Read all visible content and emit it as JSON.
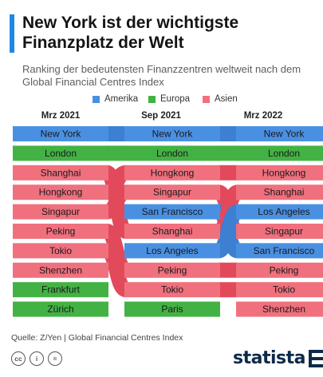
{
  "title": "New York ist der wichtigste Finanzplatz der Welt",
  "subtitle": "Ranking der bedeutensten Finanzzentren weltweit nach dem Global Financial Centres Index",
  "legend": [
    {
      "label": "Amerika",
      "color": "#4a90e2",
      "region": "Amerika"
    },
    {
      "label": "Europa",
      "color": "#43b244",
      "region": "Europa"
    },
    {
      "label": "Asien",
      "color": "#f0707e",
      "region": "Asien"
    }
  ],
  "source": "Quelle: Z/Yen | Global Financial Centres Index",
  "logo": "statista",
  "license_icons": [
    "cc-icon",
    "attribution-icon",
    "equals-icon"
  ],
  "chart_data": {
    "type": "table",
    "columns": [
      "Mrz 2021",
      "Sep 2021",
      "Mrz 2022"
    ],
    "regions": {
      "New York": "Amerika",
      "San Francisco": "Amerika",
      "Los Angeles": "Amerika",
      "London": "Europa",
      "Frankfurt": "Europa",
      "Zürich": "Europa",
      "Paris": "Europa",
      "Shanghai": "Asien",
      "Hongkong": "Asien",
      "Singapur": "Asien",
      "Peking": "Asien",
      "Tokio": "Asien",
      "Shenzhen": "Asien"
    },
    "region_colors": {
      "Amerika": {
        "fill": "#4a90e2",
        "link": "#3d7fd0"
      },
      "Europa": {
        "fill": "#43b244",
        "link": "#43b244"
      },
      "Asien": {
        "fill": "#f0707e",
        "link": "#e24a5c"
      }
    },
    "rankings": [
      [
        "New York",
        "London",
        "Shanghai",
        "Hongkong",
        "Singapur",
        "Peking",
        "Tokio",
        "Shenzhen",
        "Frankfurt",
        "Zürich"
      ],
      [
        "New York",
        "London",
        "Hongkong",
        "Singapur",
        "San Francisco",
        "Shanghai",
        "Los Angeles",
        "Peking",
        "Tokio",
        "Paris"
      ],
      [
        "New York",
        "London",
        "Hongkong",
        "Shanghai",
        "Los Angeles",
        "Singapur",
        "San Francisco",
        "Peking",
        "Tokio",
        "Shenzhen"
      ]
    ]
  }
}
